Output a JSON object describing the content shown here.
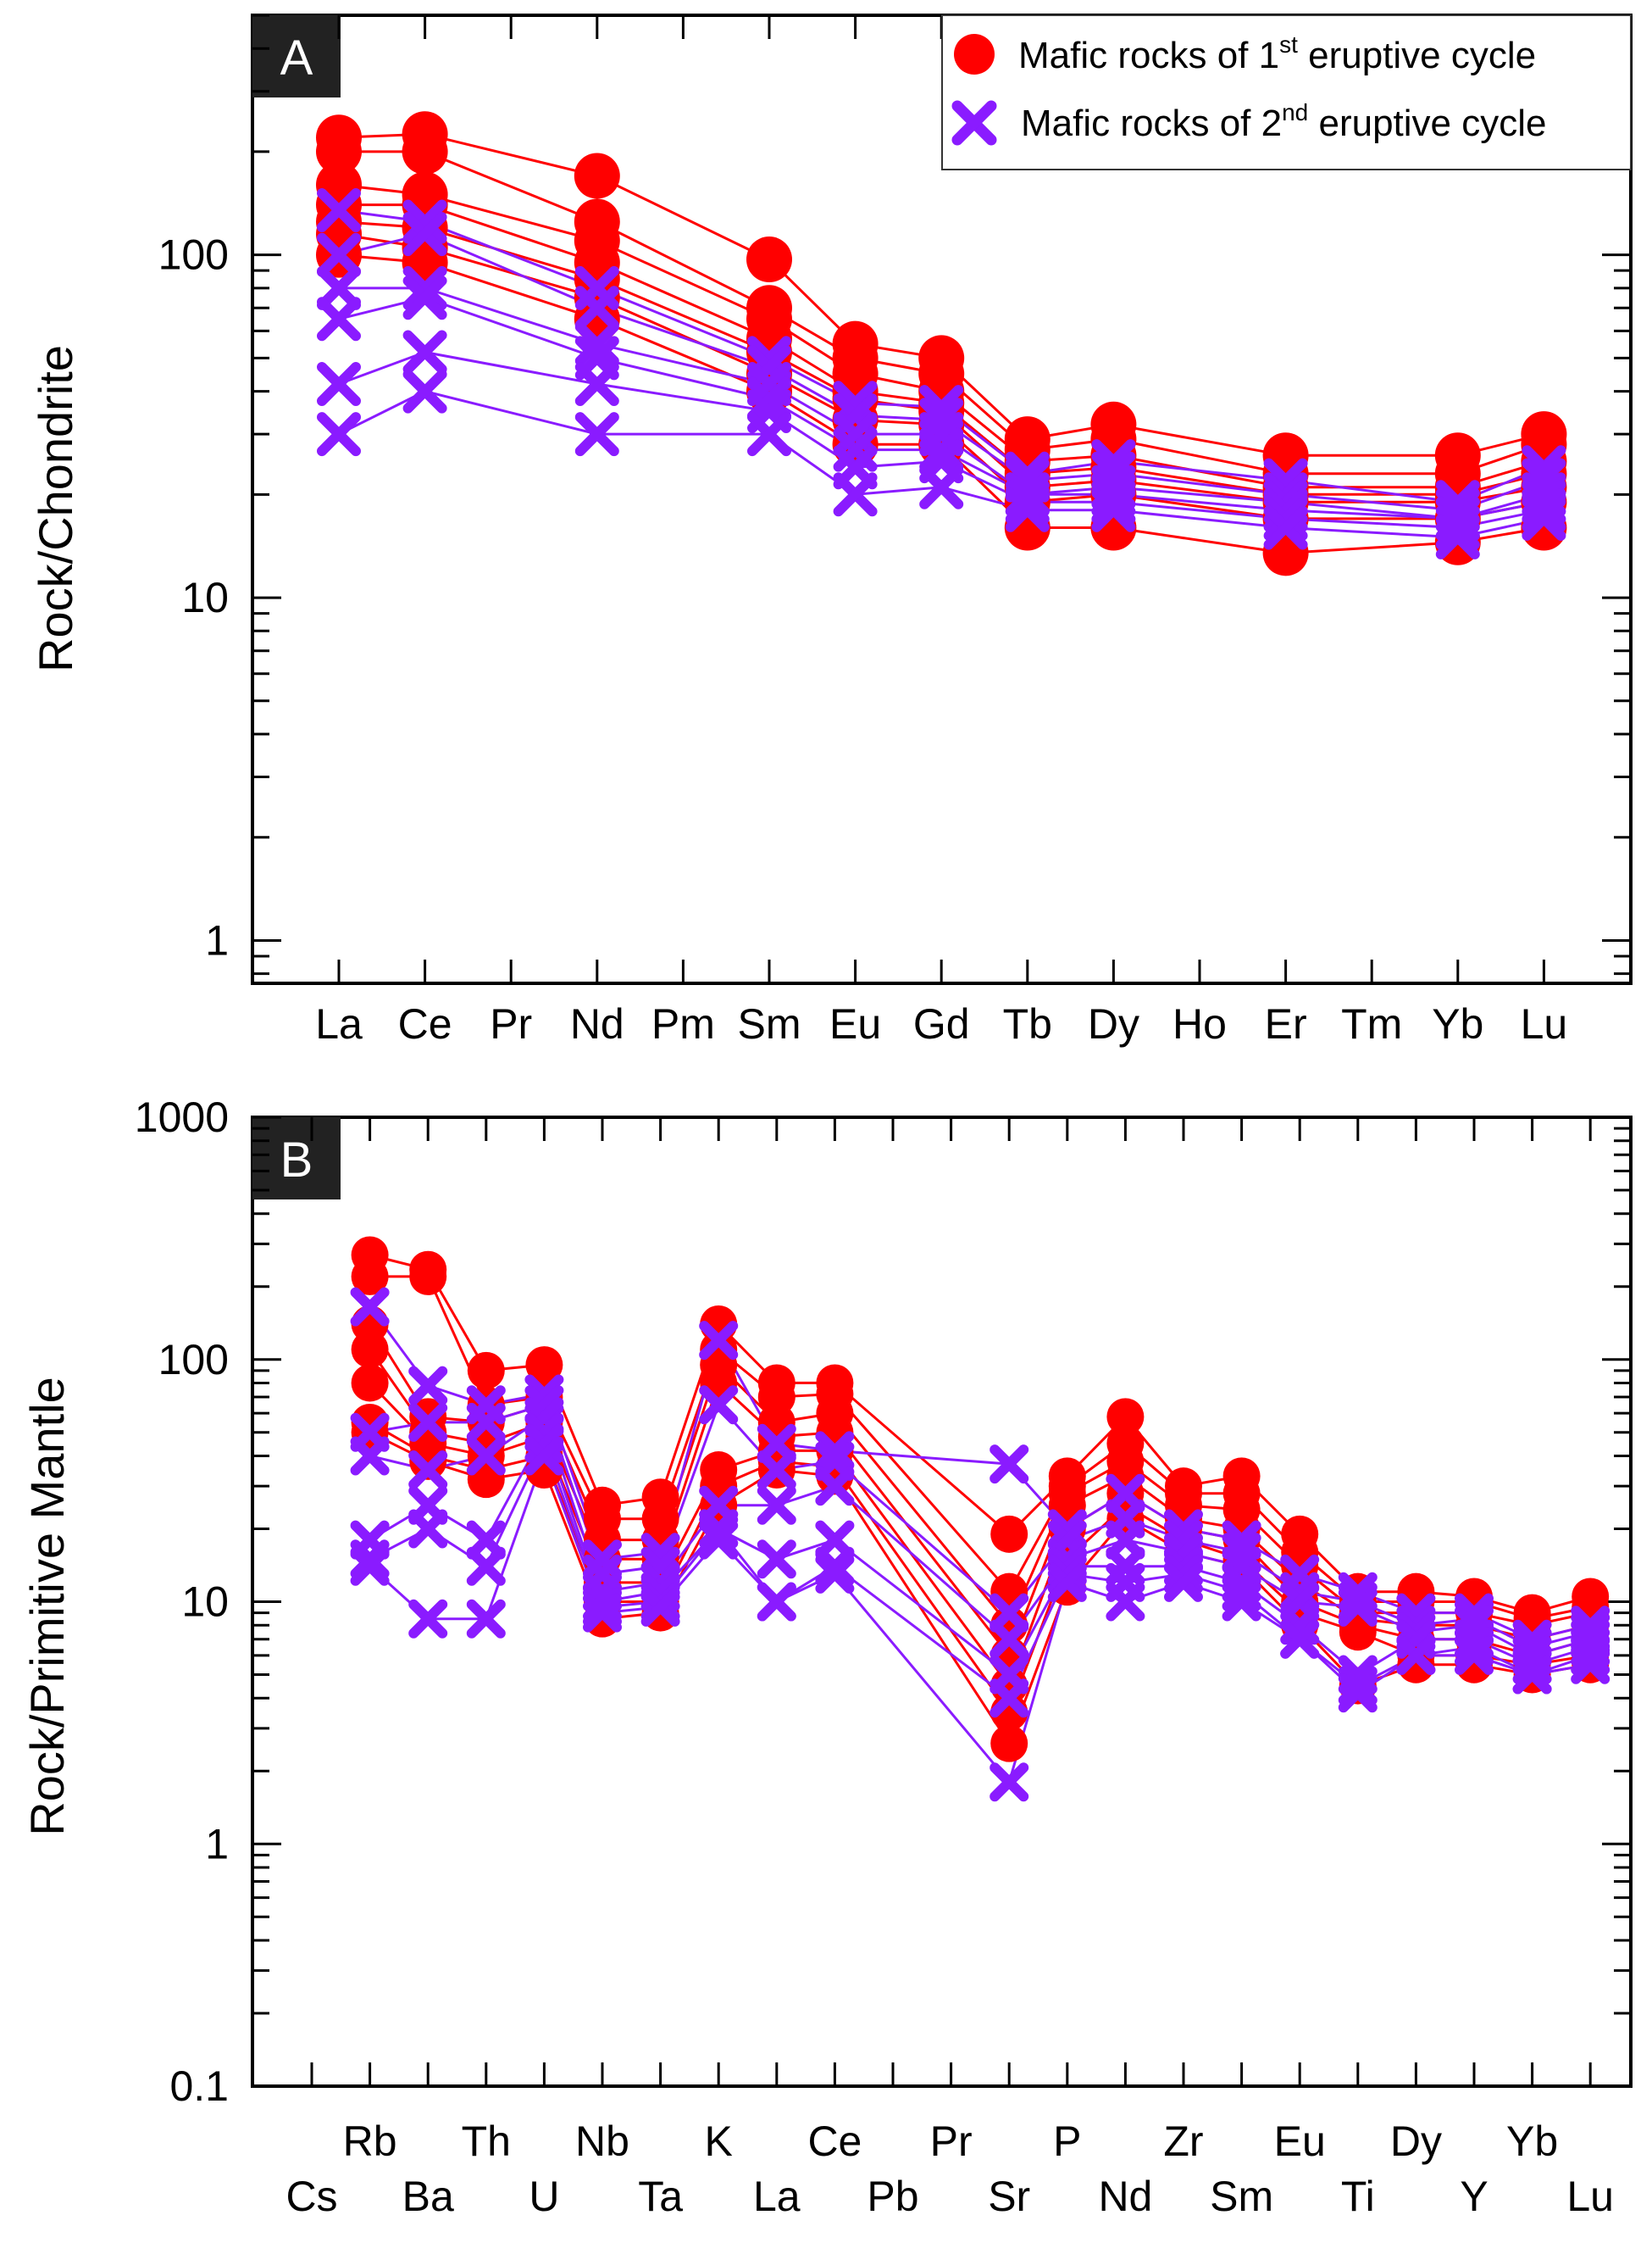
{
  "colors": {
    "series1": "#ff0000",
    "series2": "#8a1bff",
    "badge": "#222222"
  },
  "legend": {
    "series1": {
      "pre": "Mafic rocks of 1",
      "sup": "st",
      "post": " eruptive cycle",
      "marker": "circle"
    },
    "series2": {
      "pre": "Mafic rocks of 2",
      "sup": "nd",
      "post": " eruptive cycle",
      "marker": "cross"
    }
  },
  "chart_data": [
    {
      "panel": "A",
      "type": "line",
      "yscale": "log",
      "ylabel": "Rock/Chondrite",
      "ylim": [
        0.75,
        500
      ],
      "yticks": [
        1,
        10,
        100
      ],
      "categories": [
        "La",
        "Ce",
        "Pr",
        "Nd",
        "Pm",
        "Sm",
        "Eu",
        "Gd",
        "Tb",
        "Dy",
        "Ho",
        "Er",
        "Tm",
        "Yb",
        "Lu"
      ],
      "series_groups": [
        {
          "name": "Mafic rocks of 1st eruptive cycle",
          "marker": "circle",
          "samples": [
            {
              "La": 220,
              "Ce": 225,
              "Nd": 170,
              "Sm": 97,
              "Eu": 55,
              "Gd": 50,
              "Tb": 29,
              "Dy": 32,
              "Er": 26,
              "Yb": 26,
              "Lu": 30
            },
            {
              "La": 200,
              "Ce": 200,
              "Nd": 125,
              "Sm": 70,
              "Eu": 50,
              "Gd": 45,
              "Tb": 27,
              "Dy": 29,
              "Er": 23,
              "Yb": 23,
              "Lu": 28
            },
            {
              "La": 160,
              "Ce": 150,
              "Nd": 110,
              "Sm": 65,
              "Eu": 45,
              "Gd": 40,
              "Tb": 25,
              "Dy": 26,
              "Er": 21,
              "Yb": 21,
              "Lu": 25
            },
            {
              "La": 140,
              "Ce": 140,
              "Nd": 95,
              "Sm": 57,
              "Eu": 40,
              "Gd": 37,
              "Tb": 23,
              "Dy": 24,
              "Er": 20,
              "Yb": 20,
              "Lu": 23
            },
            {
              "La": 125,
              "Ce": 120,
              "Nd": 85,
              "Sm": 52,
              "Eu": 38,
              "Gd": 35,
              "Tb": 21,
              "Dy": 22,
              "Er": 19,
              "Yb": 19,
              "Lu": 21
            },
            {
              "La": 115,
              "Ce": 105,
              "Nd": 75,
              "Sm": 45,
              "Eu": 33,
              "Gd": 32,
              "Tb": 19,
              "Dy": 20,
              "Er": 17,
              "Yb": 17,
              "Lu": 19
            },
            {
              "La": 100,
              "Ce": 95,
              "Nd": 65,
              "Sm": 40,
              "Eu": 28,
              "Gd": 28,
              "Tb": 16,
              "Dy": 16,
              "Er": 13.5,
              "Yb": 14.5,
              "Lu": 16
            }
          ]
        },
        {
          "name": "Mafic rocks of 2nd eruptive cycle",
          "marker": "cross",
          "samples": [
            {
              "La": 135,
              "Ce": 125,
              "Nd": 80,
              "Sm": 50,
              "Eu": 37,
              "Gd": 36,
              "Tb": 23,
              "Dy": 25,
              "Er": 22,
              "Yb": 19,
              "Lu": 24
            },
            {
              "La": 100,
              "Ce": 115,
              "Nd": 70,
              "Sm": 47,
              "Eu": 34,
              "Gd": 33,
              "Tb": 22,
              "Dy": 23,
              "Er": 20,
              "Yb": 18,
              "Lu": 22
            },
            {
              "La": 80,
              "Ce": 80,
              "Nd": 55,
              "Sm": 42,
              "Eu": 30,
              "Gd": 30,
              "Tb": 20,
              "Dy": 21,
              "Er": 19,
              "Yb": 17,
              "Lu": 20
            },
            {
              "La": 65,
              "Ce": 75,
              "Nd": 50,
              "Sm": 38,
              "Eu": 27,
              "Gd": 27,
              "Tb": 20,
              "Dy": 20,
              "Er": 18,
              "Yb": 17,
              "Lu": 19
            },
            {
              "La": 42,
              "Ce": 52,
              "Nd": 42,
              "Sm": 35,
              "Eu": 24,
              "Gd": 25,
              "Tb": 19,
              "Dy": 19,
              "Er": 17,
              "Yb": 16,
              "Lu": 18
            },
            {
              "La": 30,
              "Ce": 40,
              "Nd": 30,
              "Sm": 30,
              "Eu": 20,
              "Gd": 21,
              "Tb": 18,
              "Dy": 18,
              "Er": 16,
              "Yb": 15,
              "Lu": 17
            }
          ]
        }
      ]
    },
    {
      "panel": "B",
      "type": "line",
      "yscale": "log",
      "ylabel": "Rock/Primitive Mantle",
      "ylim": [
        0.1,
        1000
      ],
      "yticks": [
        0.1,
        1,
        10,
        100,
        1000
      ],
      "categories": [
        "Cs",
        "Rb",
        "Ba",
        "Th",
        "U",
        "Nb",
        "Ta",
        "K",
        "La",
        "Ce",
        "Pb",
        "Pr",
        "Sr",
        "P",
        "Nd",
        "Zr",
        "Sm",
        "Eu",
        "Ti",
        "Dy",
        "Y",
        "Yb",
        "Lu"
      ],
      "series_groups": [
        {
          "name": "Mafic rocks of 1st eruptive cycle",
          "marker": "circle",
          "samples": [
            {
              "Rb": 270,
              "Ba": 235,
              "Th": 90,
              "U": 95,
              "Nb": 25,
              "Ta": 27,
              "K": 140,
              "La": 80,
              "Ce": 80,
              "Sr": 19,
              "P": 33,
              "Nd": 58,
              "Zr": 30,
              "Sm": 33,
              "Eu": 19,
              "Ti": 11,
              "Dy": 11,
              "Y": 10.5,
              "Yb": 9,
              "Lu": 10.5
            },
            {
              "Rb": 220,
              "Ba": 220,
              "Th": 65,
              "U": 70,
              "Nb": 22,
              "Ta": 22,
              "K": 110,
              "La": 70,
              "Ce": 72,
              "Sr": 11,
              "P": 30,
              "Nd": 45,
              "Zr": 28,
              "Sm": 28,
              "Eu": 16,
              "Ti": 10,
              "Dy": 10,
              "Y": 10,
              "Yb": 8.5,
              "Lu": 9.5
            },
            {
              "Rb": 140,
              "Ba": 58,
              "Th": 55,
              "U": 65,
              "Nb": 18,
              "Ta": 18,
              "K": 95,
              "La": 55,
              "Ce": 60,
              "Sr": 8,
              "P": 28,
              "Nd": 38,
              "Zr": 25,
              "Sm": 24,
              "Eu": 14,
              "Ti": 9,
              "Dy": 9,
              "Y": 9,
              "Yb": 8,
              "Lu": 9
            },
            {
              "Rb": 110,
              "Ba": 50,
              "Th": 45,
              "U": 55,
              "Nb": 15,
              "Ta": 15,
              "K": 80,
              "La": 48,
              "Ce": 50,
              "Sr": 6,
              "P": 25,
              "Nd": 33,
              "Zr": 22,
              "Sm": 20,
              "Eu": 12,
              "Ti": 8.5,
              "Dy": 8,
              "Y": 8,
              "Yb": 7,
              "Lu": 8
            },
            {
              "Rb": 80,
              "Ba": 45,
              "Th": 40,
              "U": 48,
              "Nb": 12,
              "Ta": 12,
              "K": 35,
              "La": 42,
              "Ce": 42,
              "Sr": 4.5,
              "P": 20,
              "Nd": 28,
              "Zr": 20,
              "Sm": 18,
              "Eu": 10,
              "Ti": 8,
              "Dy": 7,
              "Y": 7,
              "Yb": 6,
              "Lu": 7
            },
            {
              "Rb": 55,
              "Ba": 40,
              "Th": 35,
              "U": 40,
              "Nb": 10,
              "Ta": 10,
              "K": 30,
              "La": 38,
              "Ce": 36,
              "Sr": 3.5,
              "P": 15,
              "Nd": 25,
              "Zr": 18,
              "Sm": 15,
              "Eu": 9,
              "Ti": 7.5,
              "Dy": 6,
              "Y": 6,
              "Yb": 5.5,
              "Lu": 6
            },
            {
              "Rb": 50,
              "Ba": 38,
              "Th": 32,
              "U": 35,
              "Nb": 8.5,
              "Ta": 9,
              "K": 25,
              "La": 35,
              "Ce": 33,
              "Sr": 2.6,
              "P": 11.5,
              "Nd": 22,
              "Zr": 16,
              "Sm": 14,
              "Eu": 8,
              "Ti": 4.5,
              "Dy": 5.5,
              "Y": 5.5,
              "Yb": 5,
              "Lu": 5.5
            }
          ]
        },
        {
          "name": "Mafic rocks of 2nd eruptive cycle",
          "marker": "cross",
          "samples": [
            {
              "Rb": 165,
              "Ba": 78,
              "Th": 65,
              "U": 72,
              "Nb": 15,
              "Ta": 16,
              "K": 120,
              "La": 45,
              "Ce": 42,
              "Sr": 37,
              "P": 20,
              "Nd": 28,
              "Zr": 20,
              "Sm": 18,
              "Eu": 13,
              "Ti": 11,
              "Dy": 9,
              "Y": 9,
              "Yb": 7,
              "Lu": 8
            },
            {
              "Rb": 50,
              "Ba": 55,
              "Th": 55,
              "U": 65,
              "Nb": 13,
              "Ta": 14,
              "K": 65,
              "La": 35,
              "Ce": 38,
              "Sr": 9,
              "P": 18,
              "Nd": 22,
              "Zr": 18,
              "Sm": 16,
              "Eu": 11,
              "Ti": 10,
              "Dy": 8,
              "Y": 8.5,
              "Yb": 6.5,
              "Lu": 7.5
            },
            {
              "Rb": 40,
              "Ba": 35,
              "Th": 40,
              "U": 58,
              "Nb": 11,
              "Ta": 12,
              "K": 25,
              "La": 25,
              "Ce": 30,
              "Sr": 7,
              "P": 15,
              "Nd": 18,
              "Zr": 16,
              "Sm": 14,
              "Eu": 10,
              "Ti": 9.5,
              "Dy": 7.5,
              "Y": 8,
              "Yb": 6,
              "Lu": 7
            },
            {
              "Rb": 18,
              "Ba": 25,
              "Th": 18,
              "U": 50,
              "Nb": 10,
              "Ta": 11,
              "K": 20,
              "La": 15,
              "Ce": 18,
              "Sr": 5,
              "P": 14,
              "Nd": 14,
              "Zr": 14,
              "Sm": 12,
              "Eu": 8,
              "Ti": 5,
              "Dy": 7,
              "Y": 7,
              "Yb": 5.5,
              "Lu": 6.5
            },
            {
              "Rb": 15,
              "Ba": 20,
              "Th": 14,
              "U": 45,
              "Nb": 9.5,
              "Ta": 10,
              "K": 20,
              "La": 10,
              "Ce": 14,
              "Sr": 4,
              "P": 13,
              "Nd": 12,
              "Zr": 13,
              "Sm": 11,
              "Eu": 7,
              "Ti": 4.5,
              "Dy": 6,
              "Y": 6.5,
              "Yb": 5,
              "Lu": 6
            },
            {
              "Rb": 14,
              "Ba": 8.5,
              "Th": 8.5,
              "U": 40,
              "Nb": 9,
              "Ta": 9.5,
              "K": 18,
              "La": 10,
              "Ce": 13,
              "Sr": 1.8,
              "P": 12,
              "Nd": 10,
              "Zr": 12,
              "Sm": 10,
              "Eu": 7,
              "Ti": 4.2,
              "Dy": 6,
              "Y": 6,
              "Yb": 5,
              "Lu": 5.5
            }
          ]
        }
      ]
    }
  ]
}
